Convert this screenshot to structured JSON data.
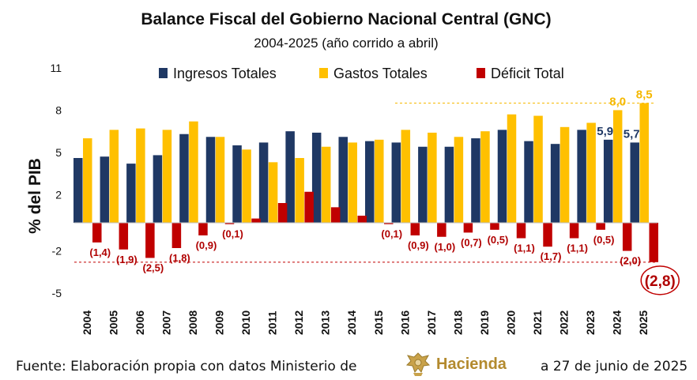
{
  "chart_data": {
    "type": "bar",
    "title": "Balance Fiscal del Gobierno Nacional Central (GNC)",
    "subtitle": "2004-2025 (año corrido a abril)",
    "ylabel": "% del PIB",
    "xlabel": "",
    "ylim": [
      -5,
      11
    ],
    "yticks": [
      11,
      8,
      5,
      2,
      -2,
      -5
    ],
    "legend_position": "top",
    "categories": [
      "2004",
      "2005",
      "2006",
      "2007",
      "2008",
      "2009",
      "2010",
      "2011",
      "2012",
      "2013",
      "2014",
      "2015",
      "2016",
      "2017",
      "2018",
      "2019",
      "2020",
      "2021",
      "2022",
      "2023",
      "2024",
      "2025"
    ],
    "series": [
      {
        "name": "Ingresos Totales",
        "color": "#1f3864",
        "values": [
          4.6,
          4.7,
          4.2,
          4.8,
          6.3,
          6.1,
          5.5,
          5.7,
          6.5,
          6.4,
          6.1,
          5.8,
          5.7,
          5.4,
          5.4,
          6.0,
          6.6,
          5.8,
          5.6,
          6.6,
          5.9,
          5.7
        ]
      },
      {
        "name": "Gastos Totales",
        "color": "#ffc000",
        "values": [
          6.0,
          6.6,
          6.7,
          6.6,
          7.2,
          6.1,
          5.2,
          4.3,
          4.6,
          5.4,
          5.7,
          5.9,
          6.6,
          6.4,
          6.1,
          6.5,
          7.7,
          7.6,
          6.8,
          7.1,
          8.0,
          8.5
        ]
      },
      {
        "name": "Déficit Total",
        "color": "#c00000",
        "values": [
          -1.4,
          -1.9,
          -2.5,
          -1.8,
          -0.9,
          -0.1,
          0.3,
          1.4,
          2.2,
          1.1,
          0.5,
          -0.1,
          -0.9,
          -1.0,
          -0.7,
          -0.5,
          -1.1,
          -1.7,
          -1.1,
          -0.5,
          -2.0,
          -2.8
        ]
      }
    ],
    "deficit_labels": [
      "(1,4)",
      "(1,9)",
      "(2,5)",
      "(1,8)",
      "(0,9)",
      "(0,1)",
      "",
      "",
      "",
      "",
      "",
      "(0,1)",
      "(0,9)",
      "(1,0)",
      "(0,7)",
      "(0,5)",
      "(1,1)",
      "(1,7)",
      "(1,1)",
      "(0,5)",
      "(2,0)",
      "(2,8)"
    ],
    "value_labels": [
      {
        "category": "2024",
        "series": "Gastos Totales",
        "text": "8,0"
      },
      {
        "category": "2025",
        "series": "Gastos Totales",
        "text": "8,5"
      },
      {
        "category": "2024",
        "series": "Ingresos Totales",
        "text": "5,9"
      },
      {
        "category": "2025",
        "series": "Ingresos Totales",
        "text": "5,7"
      }
    ],
    "reference_lines": [
      {
        "value": 8.5,
        "color": "#f5b800",
        "style": "dashed"
      },
      {
        "value": -2.8,
        "color": "#c00000",
        "style": "dashed"
      }
    ],
    "highlight": {
      "category": "2025",
      "series": "Déficit Total",
      "text": "(2,8)"
    }
  },
  "footer": {
    "source_text": "Fuente: Elaboración propia con datos Ministerio de",
    "logo_text": "Hacienda",
    "date_text": "a 27 de junio de 2025"
  },
  "icons": {
    "logo": "colombia-coat-of-arms-icon"
  }
}
